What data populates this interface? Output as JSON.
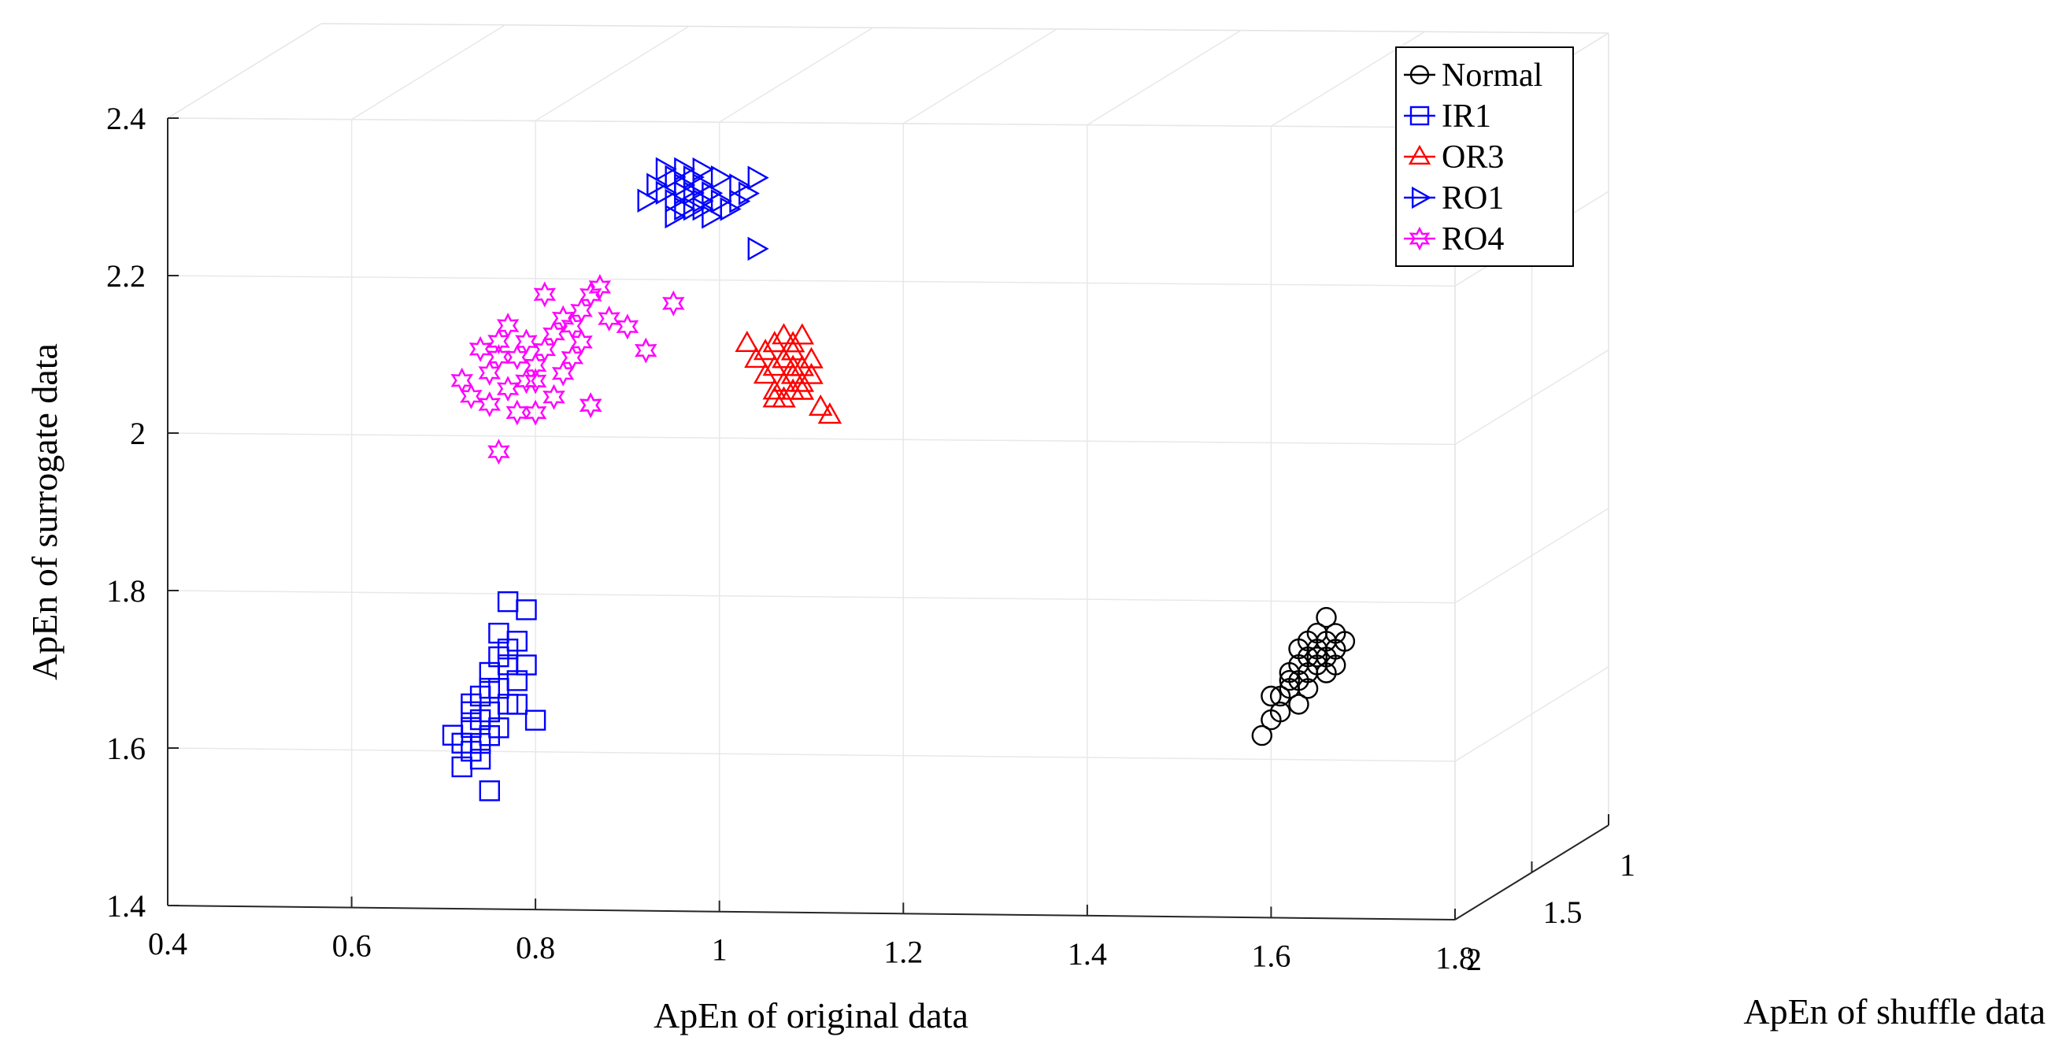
{
  "chart_data": {
    "type": "scatter",
    "dimensions": 3,
    "title": "",
    "xlabel": "ApEn of original data",
    "ylabel": "ApEn of surrogate data",
    "zlabel": "ApEn of shuffle data",
    "xlim": [
      0.4,
      1.8
    ],
    "ylim": [
      1.4,
      2.4
    ],
    "zlim": [
      1,
      2
    ],
    "xticks": [
      "0.4",
      "0.6",
      "0.8",
      "1",
      "1.2",
      "1.4",
      "1.6",
      "1.8"
    ],
    "yticks": [
      "1.4",
      "1.6",
      "1.8",
      "2",
      "2.2",
      "2.4"
    ],
    "zticks": [
      "1",
      "1.5",
      "2"
    ],
    "grid": true,
    "legend_position": "top-right",
    "series": [
      {
        "name": "Normal",
        "marker": "circle",
        "color": "#000000",
        "x": [
          1.59,
          1.6,
          1.6,
          1.61,
          1.61,
          1.62,
          1.62,
          1.62,
          1.63,
          1.63,
          1.63,
          1.64,
          1.64,
          1.64,
          1.65,
          1.65,
          1.65,
          1.66,
          1.66,
          1.66,
          1.67,
          1.67,
          1.67,
          1.68,
          1.66,
          1.64,
          1.63,
          1.65
        ],
        "y": [
          1.63,
          1.65,
          1.68,
          1.66,
          1.68,
          1.69,
          1.7,
          1.71,
          1.7,
          1.72,
          1.74,
          1.71,
          1.73,
          1.75,
          1.72,
          1.74,
          1.76,
          1.73,
          1.75,
          1.78,
          1.74,
          1.76,
          1.72,
          1.75,
          1.71,
          1.69,
          1.67,
          1.73
        ]
      },
      {
        "name": "IR1",
        "marker": "square",
        "color": "#0000ff",
        "x": [
          0.71,
          0.72,
          0.72,
          0.73,
          0.73,
          0.73,
          0.74,
          0.74,
          0.74,
          0.75,
          0.75,
          0.75,
          0.75,
          0.76,
          0.76,
          0.76,
          0.77,
          0.77,
          0.77,
          0.78,
          0.78,
          0.78,
          0.79,
          0.79,
          0.8,
          0.74,
          0.76,
          0.73,
          0.75,
          0.77
        ],
        "y": [
          1.62,
          1.58,
          1.61,
          1.6,
          1.63,
          1.66,
          1.59,
          1.64,
          1.67,
          1.55,
          1.62,
          1.65,
          1.7,
          1.63,
          1.68,
          1.72,
          1.66,
          1.71,
          1.79,
          1.69,
          1.74,
          1.66,
          1.71,
          1.78,
          1.64,
          1.61,
          1.75,
          1.65,
          1.68,
          1.73
        ]
      },
      {
        "name": "OR3",
        "marker": "triangle-up",
        "color": "#ff0000",
        "x": [
          1.03,
          1.04,
          1.05,
          1.05,
          1.06,
          1.06,
          1.06,
          1.07,
          1.07,
          1.07,
          1.07,
          1.08,
          1.08,
          1.08,
          1.08,
          1.09,
          1.09,
          1.09,
          1.1,
          1.1,
          1.11,
          1.12,
          1.06,
          1.08,
          1.09,
          1.07
        ],
        "y": [
          2.12,
          2.1,
          2.08,
          2.11,
          2.06,
          2.09,
          2.12,
          2.07,
          2.1,
          2.13,
          2.05,
          2.08,
          2.11,
          2.06,
          2.12,
          2.09,
          2.07,
          2.13,
          2.1,
          2.08,
          2.04,
          2.03,
          2.05,
          2.09,
          2.06,
          2.1
        ]
      },
      {
        "name": "RO1",
        "marker": "triangle-right",
        "color": "#0000ff",
        "x": [
          0.92,
          0.93,
          0.94,
          0.94,
          0.95,
          0.95,
          0.95,
          0.96,
          0.96,
          0.96,
          0.97,
          0.97,
          0.97,
          0.98,
          0.98,
          0.98,
          0.99,
          0.99,
          1.0,
          1.0,
          1.01,
          1.02,
          1.02,
          1.03,
          1.04,
          1.04,
          0.96,
          0.98
        ],
        "y": [
          2.3,
          2.32,
          2.31,
          2.34,
          2.3,
          2.33,
          2.28,
          2.32,
          2.29,
          2.34,
          2.31,
          2.33,
          2.29,
          2.32,
          2.3,
          2.34,
          2.31,
          2.28,
          2.33,
          2.3,
          2.29,
          2.32,
          2.3,
          2.31,
          2.33,
          2.24,
          2.31,
          2.29
        ]
      },
      {
        "name": "RO4",
        "marker": "hexagram",
        "color": "#ff00ff",
        "x": [
          0.72,
          0.73,
          0.74,
          0.75,
          0.75,
          0.76,
          0.76,
          0.77,
          0.77,
          0.78,
          0.78,
          0.79,
          0.79,
          0.8,
          0.8,
          0.81,
          0.81,
          0.82,
          0.82,
          0.83,
          0.83,
          0.84,
          0.84,
          0.85,
          0.85,
          0.86,
          0.86,
          0.87,
          0.88,
          0.9,
          0.92,
          0.95,
          0.76,
          0.8,
          0.86
        ],
        "y": [
          2.07,
          2.05,
          2.11,
          2.04,
          2.08,
          1.98,
          2.12,
          2.06,
          2.14,
          2.1,
          2.03,
          2.12,
          2.07,
          2.09,
          2.03,
          2.18,
          2.11,
          2.05,
          2.13,
          2.15,
          2.08,
          2.1,
          2.14,
          2.12,
          2.16,
          2.04,
          2.18,
          2.19,
          2.15,
          2.14,
          2.11,
          2.17,
          2.1,
          2.07,
          2.04
        ]
      }
    ]
  }
}
